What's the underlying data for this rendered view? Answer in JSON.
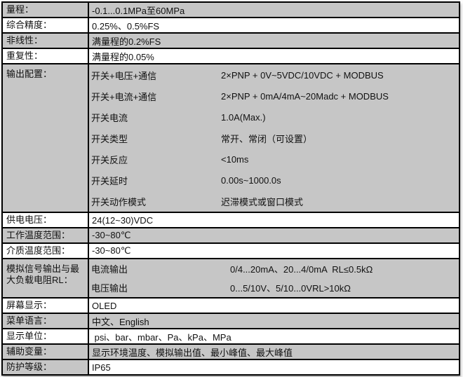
{
  "colors": {
    "row_shaded": "#c6c6c6",
    "row_plain": "#ffffff",
    "grid_border": "#000000",
    "text": "#111111"
  },
  "table": {
    "rows": [
      {
        "label": "量程：",
        "value": "-0.1...0.1MPa至60MPa"
      },
      {
        "label": "综合精度：",
        "value": "0.25%、0.5%FS"
      },
      {
        "label": "非线性：",
        "value": "满量程的0.2%FS"
      },
      {
        "label": "重复性：",
        "value": "满量程的0.05%"
      },
      {
        "label": "输出配置：",
        "subrows": [
          {
            "name": "开关+电压+通信",
            "value": "2×PNP + 0V~5VDC/10VDC + MODBUS"
          },
          {
            "name": "开关+电流+通信",
            "value": "2×PNP + 0mA/4mA~20Madc + MODBUS"
          },
          {
            "name": "开关电流",
            "value": "1.0A(Max.)"
          },
          {
            "name": "开关类型",
            "value": "常开、常闭（可设置）"
          },
          {
            "name": "开关反应",
            "value": "<10ms"
          },
          {
            "name": "开关延时",
            "value": "0.00s~1000.0s"
          },
          {
            "name": "开关动作模式",
            "value": "迟滞模式或窗口模式"
          }
        ]
      },
      {
        "label": "供电电压：",
        "value": "24(12~30)VDC"
      },
      {
        "label": "工作温度范围：",
        "value": "-30~80℃"
      },
      {
        "label": "介质温度范围：",
        "value": "-30~80℃"
      },
      {
        "label": "模拟信号输出与最大负载电阻RL：",
        "subrows": [
          {
            "name": "电流输出",
            "value": "0/4...20mA、20...4/0mA  RL≤0.5kΩ"
          },
          {
            "name": "电压输出",
            "value": "0...5/10V、5/10...0VRL>10kΩ"
          }
        ]
      },
      {
        "label": "屏幕显示：",
        "value": "OLED"
      },
      {
        "label": "菜单语言：",
        "value": "中文、English"
      },
      {
        "label": "显示单位：",
        "value": " psi、bar、mbar、Pa、kPa、MPa"
      },
      {
        "label": "辅助变量：",
        "value": "显示环境温度、模拟输出值、最小峰值、最大峰值"
      },
      {
        "label": "防护等级：",
        "value": "IP65"
      }
    ]
  }
}
